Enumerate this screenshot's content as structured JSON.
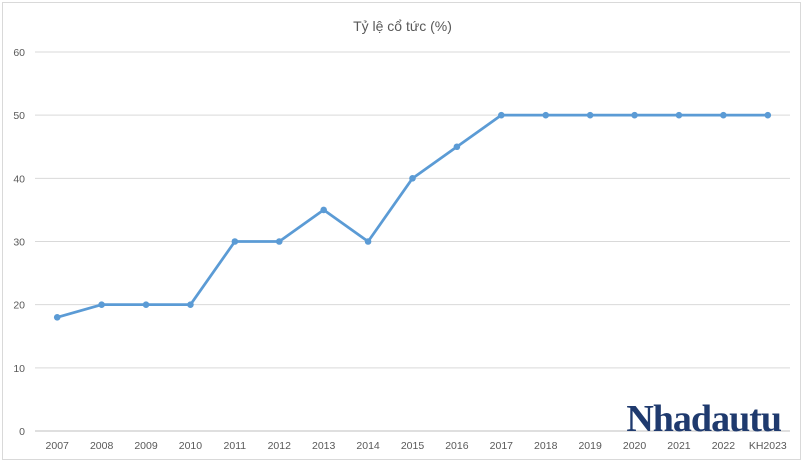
{
  "chart_data": {
    "type": "line",
    "title": "Tỷ lệ cổ tức (%)",
    "categories": [
      "2007",
      "2008",
      "2009",
      "2010",
      "2011",
      "2012",
      "2013",
      "2014",
      "2015",
      "2016",
      "2017",
      "2018",
      "2019",
      "2020",
      "2021",
      "2022",
      "KH2023"
    ],
    "series": [
      {
        "values": [
          18,
          20,
          20,
          20,
          30,
          30,
          35,
          30,
          40,
          45,
          50,
          50,
          50,
          50,
          50,
          50,
          50
        ]
      }
    ],
    "ylim": [
      0,
      60
    ],
    "yticks": [
      0,
      10,
      20,
      30,
      40,
      50,
      60
    ],
    "grid": true,
    "legend": "none",
    "line_color": "#5b9bd5"
  },
  "watermark": "Nhadautu"
}
